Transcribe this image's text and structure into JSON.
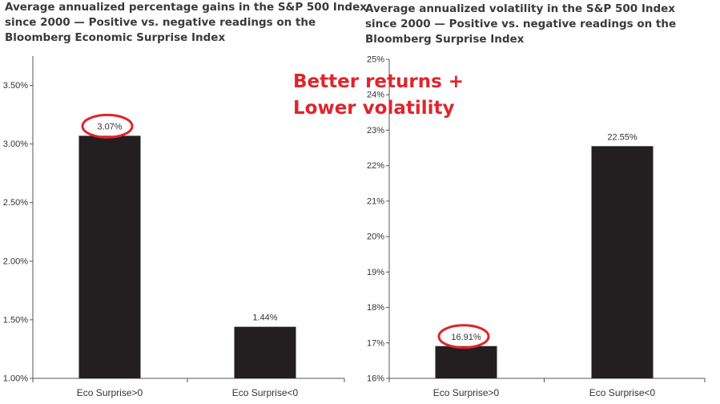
{
  "titles": {
    "left": [
      "Average annualized percentage gains in the S&P 500 Index",
      "since 2000 — Positive vs. negative readings on the",
      "Bloomberg Economic Surprise Index"
    ],
    "right": [
      "Average annualized volatility in the S&P 500 Index",
      "since 2000 — Positive vs. negative readings on the",
      "Bloomberg Surprise Index"
    ]
  },
  "callout": [
    "Better returns +",
    "Lower volatility"
  ],
  "colors": {
    "bar": "#231f20",
    "highlight": "#e0242c",
    "axis": "#555555",
    "text": "#333333"
  },
  "chart_data": [
    {
      "type": "bar",
      "title": "Average annualized percentage gains in the S&P 500 Index since 2000 — Positive vs. negative readings on the Bloomberg Economic Surprise Index",
      "categories": [
        "Eco Surprise>0",
        "Eco Surprise<0"
      ],
      "values": [
        3.07,
        1.44
      ],
      "value_labels": [
        "3.07%",
        "1.44%"
      ],
      "highlighted": [
        true,
        false
      ],
      "ylim": [
        1.0,
        3.75
      ],
      "yticks": [
        1.0,
        1.5,
        2.0,
        2.5,
        3.0,
        3.5
      ],
      "ytick_labels": [
        "1.00%",
        "1.50%",
        "2.00%",
        "2.50%",
        "3.00%",
        "3.50%"
      ],
      "xlabel": "",
      "ylabel": "",
      "grid": false
    },
    {
      "type": "bar",
      "title": "Average annualized volatility in the S&P 500 Index since 2000 — Positive vs. negative readings on the Bloomberg Surprise Index",
      "categories": [
        "Eco Surprise>0",
        "Eco Surprise<0"
      ],
      "values": [
        16.91,
        22.55
      ],
      "value_labels": [
        "16.91%",
        "22.55%"
      ],
      "highlighted": [
        true,
        false
      ],
      "ylim": [
        16,
        25
      ],
      "yticks": [
        16,
        17,
        18,
        19,
        20,
        21,
        22,
        23,
        24,
        25
      ],
      "ytick_labels": [
        "16%",
        "17%",
        "18%",
        "19%",
        "20%",
        "21%",
        "22%",
        "23%",
        "24%",
        "25%"
      ],
      "xlabel": "",
      "ylabel": "",
      "grid": false
    }
  ]
}
